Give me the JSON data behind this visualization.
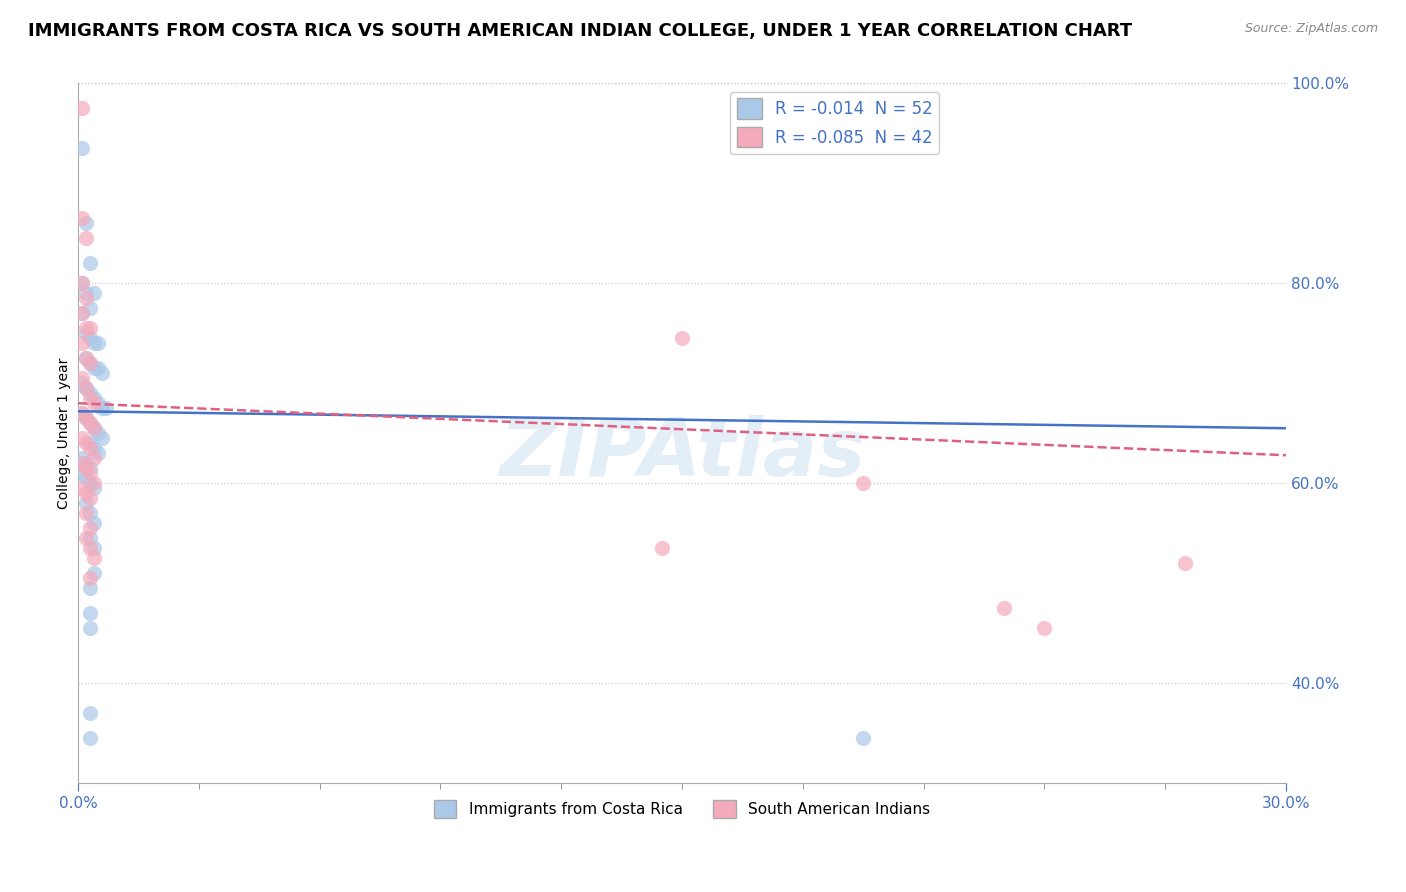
{
  "title": "IMMIGRANTS FROM COSTA RICA VS SOUTH AMERICAN INDIAN COLLEGE, UNDER 1 YEAR CORRELATION CHART",
  "source": "Source: ZipAtlas.com",
  "ylabel_label": "College, Under 1 year",
  "xmin": 0.0,
  "xmax": 0.3,
  "ymin": 0.3,
  "ymax": 1.0,
  "legend1_label": "R = -0.014  N = 52",
  "legend2_label": "R = -0.085  N = 42",
  "legend_bottom_label1": "Immigrants from Costa Rica",
  "legend_bottom_label2": "South American Indians",
  "blue_color": "#aac8e8",
  "pink_color": "#f4aabb",
  "blue_line_color": "#4472c4",
  "pink_line_color": "#e06080",
  "blue_scatter": [
    [
      0.001,
      0.935
    ],
    [
      0.002,
      0.86
    ],
    [
      0.003,
      0.82
    ],
    [
      0.001,
      0.8
    ],
    [
      0.002,
      0.79
    ],
    [
      0.003,
      0.775
    ],
    [
      0.004,
      0.79
    ],
    [
      0.001,
      0.77
    ],
    [
      0.002,
      0.75
    ],
    [
      0.003,
      0.745
    ],
    [
      0.004,
      0.74
    ],
    [
      0.005,
      0.74
    ],
    [
      0.002,
      0.725
    ],
    [
      0.003,
      0.72
    ],
    [
      0.004,
      0.715
    ],
    [
      0.005,
      0.715
    ],
    [
      0.006,
      0.71
    ],
    [
      0.001,
      0.7
    ],
    [
      0.002,
      0.695
    ],
    [
      0.003,
      0.69
    ],
    [
      0.004,
      0.685
    ],
    [
      0.005,
      0.68
    ],
    [
      0.006,
      0.675
    ],
    [
      0.007,
      0.675
    ],
    [
      0.001,
      0.67
    ],
    [
      0.002,
      0.665
    ],
    [
      0.003,
      0.66
    ],
    [
      0.004,
      0.655
    ],
    [
      0.005,
      0.65
    ],
    [
      0.006,
      0.645
    ],
    [
      0.003,
      0.64
    ],
    [
      0.004,
      0.635
    ],
    [
      0.005,
      0.63
    ],
    [
      0.001,
      0.625
    ],
    [
      0.002,
      0.62
    ],
    [
      0.003,
      0.615
    ],
    [
      0.001,
      0.61
    ],
    [
      0.002,
      0.605
    ],
    [
      0.003,
      0.6
    ],
    [
      0.004,
      0.595
    ],
    [
      0.002,
      0.58
    ],
    [
      0.003,
      0.57
    ],
    [
      0.004,
      0.56
    ],
    [
      0.003,
      0.545
    ],
    [
      0.004,
      0.535
    ],
    [
      0.004,
      0.51
    ],
    [
      0.003,
      0.495
    ],
    [
      0.003,
      0.47
    ],
    [
      0.003,
      0.455
    ],
    [
      0.003,
      0.37
    ],
    [
      0.003,
      0.345
    ],
    [
      0.195,
      0.345
    ]
  ],
  "pink_scatter": [
    [
      0.001,
      0.975
    ],
    [
      0.001,
      0.865
    ],
    [
      0.002,
      0.845
    ],
    [
      0.001,
      0.8
    ],
    [
      0.002,
      0.785
    ],
    [
      0.001,
      0.77
    ],
    [
      0.002,
      0.755
    ],
    [
      0.003,
      0.755
    ],
    [
      0.001,
      0.74
    ],
    [
      0.002,
      0.725
    ],
    [
      0.003,
      0.72
    ],
    [
      0.001,
      0.705
    ],
    [
      0.002,
      0.695
    ],
    [
      0.003,
      0.685
    ],
    [
      0.004,
      0.68
    ],
    [
      0.001,
      0.67
    ],
    [
      0.002,
      0.665
    ],
    [
      0.003,
      0.66
    ],
    [
      0.004,
      0.655
    ],
    [
      0.001,
      0.645
    ],
    [
      0.002,
      0.64
    ],
    [
      0.003,
      0.635
    ],
    [
      0.004,
      0.625
    ],
    [
      0.001,
      0.62
    ],
    [
      0.002,
      0.615
    ],
    [
      0.003,
      0.61
    ],
    [
      0.004,
      0.6
    ],
    [
      0.001,
      0.595
    ],
    [
      0.002,
      0.59
    ],
    [
      0.003,
      0.585
    ],
    [
      0.002,
      0.57
    ],
    [
      0.003,
      0.555
    ],
    [
      0.002,
      0.545
    ],
    [
      0.003,
      0.535
    ],
    [
      0.004,
      0.525
    ],
    [
      0.003,
      0.505
    ],
    [
      0.15,
      0.745
    ],
    [
      0.195,
      0.6
    ],
    [
      0.145,
      0.535
    ],
    [
      0.23,
      0.475
    ],
    [
      0.24,
      0.455
    ],
    [
      0.275,
      0.52
    ]
  ],
  "blue_trend_x": [
    0.0,
    0.3
  ],
  "blue_trend_y": [
    0.672,
    0.655
  ],
  "pink_trend_x": [
    0.0,
    0.3
  ],
  "pink_trend_y": [
    0.68,
    0.628
  ],
  "watermark": "ZIPAtlas",
  "title_fontsize": 13,
  "axis_color": "#4472c4",
  "right_yticks": [
    0.4,
    0.6,
    0.8,
    1.0
  ],
  "right_ylabels": [
    "40.0%",
    "60.0%",
    "80.0%",
    "100.0%"
  ]
}
